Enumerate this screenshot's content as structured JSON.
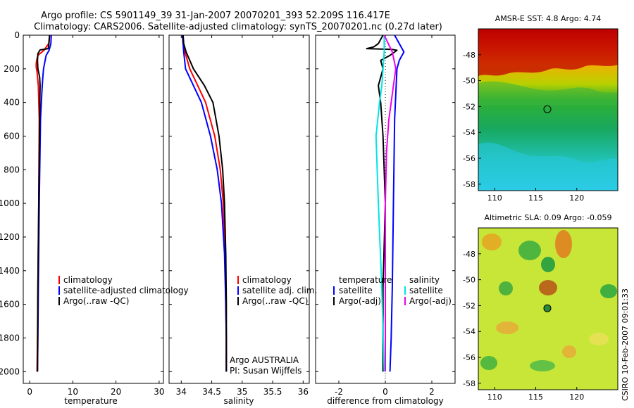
{
  "header": {
    "line1": "Argo profile: CS 5901149_39 31-Jan-2007 20070201_393 52.209S 116.417E",
    "line2": "Climatology: CARS2006. Satellite-adjusted climatology: synTS_20070201.nc (0.27d later)"
  },
  "chart_data": [
    {
      "type": "line",
      "id": "temperature",
      "xlabel": "temperature",
      "ylim": [
        2070,
        0
      ],
      "xlim": [
        -1.5,
        31
      ],
      "xticks": [
        0,
        10,
        20,
        30
      ],
      "yticks": [
        0,
        200,
        400,
        600,
        800,
        1000,
        1200,
        1400,
        1600,
        1800,
        2000
      ],
      "series": [
        {
          "name": "climatology",
          "color": "#ff0000",
          "x": [
            4.6,
            4.4,
            3.3,
            1.9,
            1.6,
            1.5,
            1.5,
            1.7,
            2.0,
            2.2,
            2.1,
            1.9,
            1.8,
            1.7
          ],
          "y": [
            0,
            50,
            90,
            120,
            150,
            170,
            190,
            220,
            300,
            500,
            1000,
            1500,
            1800,
            2000
          ]
        },
        {
          "name": "satellite-adjusted climatology",
          "color": "#0000ff",
          "x": [
            5.0,
            4.9,
            4.5,
            3.8,
            3.5,
            3.2,
            3.0,
            2.8,
            2.5,
            2.2,
            2.0,
            1.9,
            1.8
          ],
          "y": [
            0,
            50,
            90,
            120,
            160,
            200,
            260,
            350,
            500,
            1000,
            1500,
            1800,
            2000
          ]
        },
        {
          "name": "Argo(..raw -QC)",
          "color": "#000000",
          "x": [
            4.6,
            4.5,
            4.3,
            2.4,
            1.9,
            1.8,
            1.9,
            2.3,
            2.4,
            2.3,
            2.1,
            1.9,
            1.8
          ],
          "y": [
            0,
            40,
            80,
            88,
            110,
            150,
            200,
            250,
            300,
            500,
            1000,
            1500,
            2000
          ]
        }
      ]
    },
    {
      "type": "line",
      "id": "salinity",
      "xlabel": "salinity",
      "ylim": [
        2070,
        0
      ],
      "xlim": [
        33.8,
        36.1
      ],
      "xticks": [
        34,
        34.5,
        35,
        35.5,
        36
      ],
      "series": [
        {
          "name": "climatology",
          "color": "#ff0000",
          "x": [
            34.02,
            34.03,
            34.06,
            34.14,
            34.27,
            34.4,
            34.55,
            34.64,
            34.69,
            34.72,
            34.73,
            34.74,
            34.74
          ],
          "y": [
            0,
            50,
            100,
            200,
            300,
            400,
            600,
            800,
            1000,
            1300,
            1600,
            1800,
            2000
          ]
        },
        {
          "name": "satellite adj. clim.",
          "color": "#0000ff",
          "x": [
            34.02,
            34.03,
            34.04,
            34.07,
            34.2,
            34.33,
            34.48,
            34.59,
            34.66,
            34.71,
            34.73,
            34.74,
            34.74
          ],
          "y": [
            0,
            50,
            100,
            200,
            300,
            400,
            600,
            800,
            1000,
            1300,
            1600,
            1800,
            2000
          ]
        },
        {
          "name": "Argo(..raw -QC)",
          "color": "#000000",
          "x": [
            34.03,
            34.04,
            34.08,
            34.2,
            34.38,
            34.52,
            34.62,
            34.68,
            34.71,
            34.73,
            34.74,
            34.74,
            34.74
          ],
          "y": [
            0,
            50,
            100,
            200,
            300,
            400,
            600,
            800,
            1000,
            1300,
            1600,
            1800,
            2000
          ]
        }
      ]
    },
    {
      "type": "line",
      "id": "difference",
      "xlabel": "difference from climatology",
      "ylim": [
        2070,
        0
      ],
      "xlim": [
        -3,
        3
      ],
      "xticks": [
        -2,
        0,
        2
      ],
      "series": [
        {
          "name": "temperature satellite",
          "color": "#0000ff",
          "x": [
            0.4,
            0.6,
            0.8,
            0.6,
            0.5,
            0.4,
            0.35,
            0.3,
            0.25,
            0.2
          ],
          "y": [
            0,
            50,
            100,
            150,
            200,
            500,
            1000,
            1500,
            1800,
            2000
          ]
        },
        {
          "name": "temperature Argo(-adj)",
          "color": "#000000",
          "x": [
            -0.1,
            -0.3,
            -0.5,
            -0.8,
            0.3,
            0.5,
            0.2,
            -0.2,
            -0.1,
            -0.3,
            -0.2,
            -0.1,
            0.0,
            -0.1,
            -0.1,
            -0.1
          ],
          "y": [
            0,
            50,
            70,
            80,
            85,
            90,
            120,
            150,
            200,
            300,
            400,
            600,
            1000,
            1500,
            1800,
            2000
          ]
        },
        {
          "name": "salinity satellite",
          "color": "#00e5e5",
          "x": [
            -0.05,
            -0.05,
            -0.1,
            -0.15,
            -0.25,
            -0.4,
            -0.3,
            -0.15,
            -0.05
          ],
          "y": [
            0,
            100,
            200,
            300,
            400,
            600,
            1000,
            1500,
            2000
          ]
        },
        {
          "name": "salinity Argo(-adj)",
          "color": "#ee00ee",
          "x": [
            -0.05,
            0.3,
            0.45,
            0.35,
            0.25,
            0.15,
            0.05,
            0.0,
            0.0
          ],
          "y": [
            0,
            100,
            200,
            300,
            400,
            500,
            700,
            1000,
            2000
          ]
        }
      ]
    }
  ],
  "legends": {
    "temperature": [
      "climatology",
      "satellite-adjusted climatology",
      "Argo(..raw -QC)"
    ],
    "salinity": [
      "climatology",
      "satellite adj. clim.",
      "Argo(..raw -QC)"
    ],
    "diff_col1_title": "temperature",
    "diff_col2_title": "salinity",
    "diff_col1": [
      "satellite",
      "Argo(-adj)"
    ],
    "diff_col2": [
      "satellite",
      "Argo(-adj)"
    ]
  },
  "credits": {
    "line1": "Argo AUSTRALIA",
    "line2": "PI: Susan Wijffels"
  },
  "maps": [
    {
      "id": "sst",
      "title": "AMSR-E SST: 4.8 Argo: 4.74",
      "xticks": [
        110,
        115,
        120
      ],
      "yticks": [
        -48,
        -50,
        -52,
        -54,
        -56,
        -58
      ],
      "xlim": [
        108,
        125
      ],
      "ylim": [
        -58.5,
        -46
      ]
    },
    {
      "id": "sla",
      "title": "Altimetric SLA: 0.09 Argo: -0.059",
      "xticks": [
        110,
        115,
        120
      ],
      "yticks": [
        -48,
        -50,
        -52,
        -54,
        -56,
        -58
      ],
      "xlim": [
        108,
        125
      ],
      "ylim": [
        -58.5,
        -46
      ]
    }
  ],
  "float_position": {
    "lon": 116.417,
    "lat": -52.209
  },
  "stamp": "CSIRO 10-Feb-2007 09:01:33"
}
